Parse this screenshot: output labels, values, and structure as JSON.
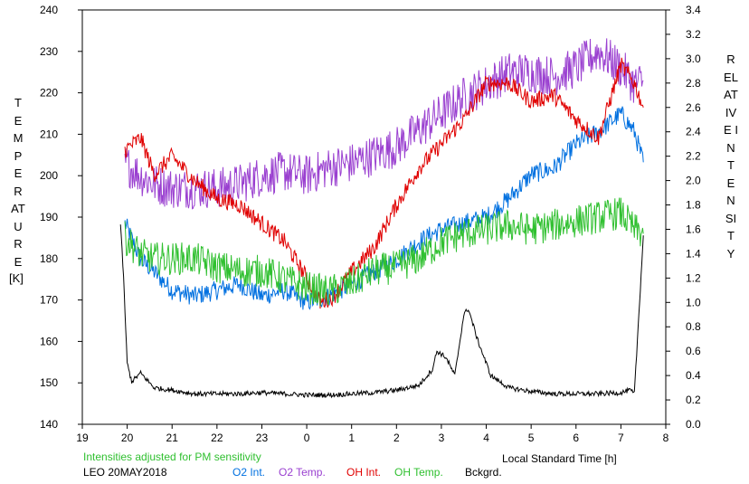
{
  "chart_data": {
    "type": "line",
    "xlabel": "Local Standard Time [h]",
    "ylabel_left": "TEMPERATURE",
    "ylabel_left_unit": "[K]",
    "ylabel_right": "RELATIVE INTENSITY",
    "x_ticks": [
      "19",
      "20",
      "21",
      "22",
      "23",
      "0",
      "1",
      "2",
      "3",
      "4",
      "5",
      "6",
      "7",
      "8"
    ],
    "xlim": [
      19,
      32
    ],
    "ylim_left": [
      140,
      240
    ],
    "ylim_right": [
      0.0,
      3.4
    ],
    "y_left_ticks": [
      "140",
      "150",
      "160",
      "170",
      "180",
      "190",
      "200",
      "210",
      "220",
      "230",
      "240"
    ],
    "y_right_ticks": [
      "0.0",
      "0.2",
      "0.4",
      "0.6",
      "0.8",
      "1.0",
      "1.2",
      "1.4",
      "1.6",
      "1.8",
      "2.0",
      "2.2",
      "2.4",
      "2.6",
      "2.8",
      "3.0",
      "3.2",
      "3.4"
    ],
    "annotation": "Intensities adjusted for PM sensitivity",
    "station_label": "LEO 20MAY2018",
    "series": [
      {
        "name": "O2 Int.",
        "color": "#0070e0",
        "axis": "right",
        "noise": 0.08,
        "x": [
          19.95,
          20.3,
          20.6,
          21.0,
          21.5,
          22.0,
          22.5,
          23.0,
          23.5,
          24.0,
          24.5,
          25.0,
          25.5,
          26.0,
          26.5,
          27.0,
          27.5,
          28.0,
          28.5,
          29.0,
          29.5,
          30.0,
          30.5,
          31.0,
          31.3,
          31.5
        ],
        "y": [
          1.65,
          1.35,
          1.25,
          1.1,
          1.05,
          1.1,
          1.15,
          1.05,
          1.1,
          1.0,
          1.05,
          1.15,
          1.25,
          1.35,
          1.5,
          1.6,
          1.65,
          1.7,
          1.85,
          2.05,
          2.1,
          2.3,
          2.4,
          2.55,
          2.4,
          2.15
        ]
      },
      {
        "name": "O2 Temp.",
        "color": "#9a40d0",
        "axis": "left",
        "noise": 5,
        "x": [
          19.95,
          20.3,
          20.6,
          21.0,
          21.5,
          22.0,
          22.5,
          23.0,
          23.5,
          24.0,
          24.5,
          25.0,
          25.5,
          26.0,
          26.5,
          27.0,
          27.5,
          28.0,
          28.5,
          29.0,
          29.5,
          30.0,
          30.5,
          31.0,
          31.3,
          31.5
        ],
        "y": [
          203,
          200,
          198,
          197,
          197,
          197,
          198,
          200,
          201,
          200,
          202,
          203,
          205,
          207,
          211,
          215,
          219,
          222,
          225,
          225,
          224,
          226,
          230,
          226,
          222,
          223
        ]
      },
      {
        "name": "OH Int.",
        "color": "#e00000",
        "axis": "right",
        "noise": 0.07,
        "x": [
          19.95,
          20.3,
          20.6,
          21.0,
          21.5,
          22.0,
          22.5,
          23.0,
          23.5,
          24.0,
          24.3,
          24.6,
          25.0,
          25.5,
          26.0,
          26.5,
          27.0,
          27.5,
          28.0,
          28.5,
          29.0,
          29.5,
          30.0,
          30.5,
          31.0,
          31.3,
          31.5
        ],
        "y": [
          2.25,
          2.35,
          2.05,
          2.2,
          2.0,
          1.85,
          1.8,
          1.65,
          1.5,
          1.2,
          1.0,
          1.05,
          1.25,
          1.45,
          1.8,
          2.1,
          2.3,
          2.5,
          2.8,
          2.8,
          2.65,
          2.7,
          2.5,
          2.35,
          2.95,
          2.8,
          2.6
        ]
      },
      {
        "name": "OH Temp.",
        "color": "#30c030",
        "axis": "left",
        "noise": 4,
        "x": [
          19.95,
          20.3,
          20.6,
          21.0,
          21.5,
          22.0,
          22.5,
          23.0,
          23.5,
          24.0,
          24.5,
          25.0,
          25.5,
          26.0,
          26.5,
          27.0,
          27.5,
          28.0,
          28.5,
          29.0,
          29.5,
          30.0,
          30.5,
          31.0,
          31.3,
          31.5
        ],
        "y": [
          185,
          181,
          180,
          180,
          180,
          178,
          177,
          177,
          175,
          173,
          172,
          174,
          177,
          178,
          180,
          184,
          186,
          187,
          188,
          187,
          188,
          189,
          190,
          191,
          187,
          186
        ]
      },
      {
        "name": "Bckgrd.",
        "color": "#000000",
        "axis": "right",
        "noise": 0.02,
        "x": [
          19.85,
          19.92,
          20.0,
          20.1,
          20.3,
          20.6,
          21.0,
          21.5,
          22.0,
          22.5,
          23.0,
          23.5,
          24.0,
          24.5,
          25.0,
          25.5,
          26.0,
          26.5,
          26.8,
          26.9,
          27.1,
          27.3,
          27.5,
          27.6,
          27.8,
          28.1,
          28.5,
          29.0,
          29.5,
          30.0,
          30.5,
          31.0,
          31.2,
          31.3,
          31.5
        ],
        "y": [
          1.65,
          1.2,
          0.5,
          0.35,
          0.42,
          0.3,
          0.28,
          0.25,
          0.25,
          0.25,
          0.26,
          0.25,
          0.24,
          0.24,
          0.25,
          0.26,
          0.28,
          0.32,
          0.45,
          0.6,
          0.55,
          0.4,
          0.9,
          0.95,
          0.7,
          0.4,
          0.3,
          0.27,
          0.25,
          0.25,
          0.25,
          0.26,
          0.28,
          0.25,
          1.55
        ]
      }
    ]
  }
}
